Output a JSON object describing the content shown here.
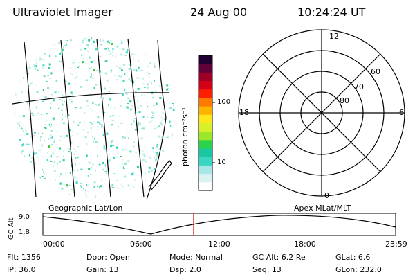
{
  "header": {
    "instrument": "Ultraviolet Imager",
    "date": "24 Aug 00",
    "time": "10:24:24 UT"
  },
  "map_labels": {
    "left": "Geographic Lat/Lon",
    "right": "Apex MLat/MLT"
  },
  "colorbar": {
    "unit_label": "photon cm⁻²s⁻¹",
    "ticks": [
      "100",
      "10"
    ],
    "colors": [
      "#ffffff",
      "#d9f2f2",
      "#a7e8e6",
      "#38d6c3",
      "#19c7a2",
      "#2bd34a",
      "#9be82a",
      "#d9ef2a",
      "#ffe81a",
      "#ffb400",
      "#ff7a00",
      "#ff1e00",
      "#d4001a",
      "#9e0025",
      "#62003a",
      "#200030"
    ]
  },
  "polar_plot": {
    "mlt_labels": [
      "12",
      "18",
      "6",
      "0"
    ],
    "lat_labels": [
      "60",
      "70",
      "80"
    ]
  },
  "timeline": {
    "axis_title": "GC Alt",
    "y_ticks": [
      "9.0",
      "1.8"
    ],
    "x_ticks": [
      "00:00",
      "06:00",
      "12:00",
      "18:00",
      "23:59"
    ],
    "marker_time": "10:24"
  },
  "status": {
    "flt": "Flt:  1356",
    "door": "Door:  Open",
    "mode": "Mode:  Normal",
    "gc_alt": "GC Alt:  6.2 Re",
    "glat": "GLat:     6.6",
    "ip": "IP:  36.0",
    "gain": "Gain:  13",
    "dsp": "Dsp:       2.0",
    "seq": "Seq:  13",
    "glon": "GLon:  232.0"
  }
}
